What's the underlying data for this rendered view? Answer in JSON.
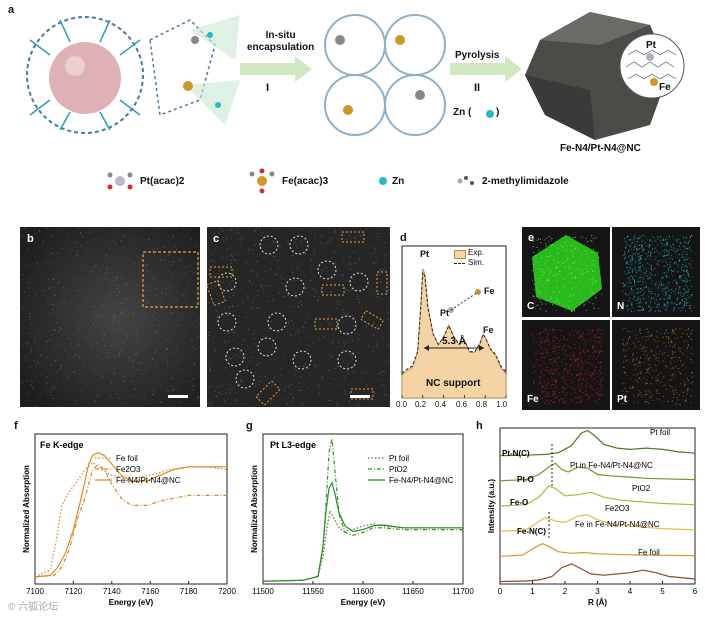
{
  "panel_a": {
    "letter": "a",
    "step1": {
      "label": "In-situ\nencapsulation",
      "numeral": "I"
    },
    "step2": {
      "label": "Pyrolysis",
      "numeral": "II",
      "product": "Zn ("
    },
    "product_label": "Fe-N4/Pt-N4@NC",
    "pt_atom": "Pt",
    "fe_atom": "Fe",
    "legend": [
      {
        "label": "Pt(acac)2"
      },
      {
        "label": "Fe(acac)3"
      },
      {
        "label": "Zn"
      },
      {
        "label": "2-methylimidazole"
      }
    ]
  },
  "panel_b": {
    "letter": "b"
  },
  "panel_c": {
    "letter": "c"
  },
  "panel_d": {
    "letter": "d",
    "pt_label": "Pt",
    "fe_label": "Fe",
    "pt2_label": "Pt",
    "fe2_label": "Fe",
    "distance": "5.3 Å",
    "support": "NC support",
    "legend": [
      "Exp.",
      "Sim."
    ],
    "ticks": [
      "0.0",
      "0.2",
      "0.4",
      "0.6",
      "0.8",
      "1.0"
    ]
  },
  "panel_e": {
    "letter": "e",
    "maps": [
      {
        "label": "C",
        "color": "#2ecc1f"
      },
      {
        "label": "N",
        "color": "#2ab5c8"
      },
      {
        "label": "Fe",
        "color": "#c0202a"
      },
      {
        "label": "Pt",
        "color": "#c47a22"
      }
    ]
  },
  "chart_data": [
    {
      "type": "line",
      "panel": "f",
      "title": "Fe K-edge",
      "xlabel": "Energy (eV)",
      "ylabel": "Normalized Absorption",
      "xlim": [
        7100,
        7200
      ],
      "xticks": [
        7100,
        7120,
        7140,
        7160,
        7180,
        7200
      ],
      "series": [
        {
          "name": "Fe foil",
          "color": "#c8893c",
          "x": [
            7100,
            7108,
            7111,
            7114,
            7118,
            7122,
            7126,
            7130,
            7135,
            7140,
            7150,
            7160,
            7170,
            7180,
            7190,
            7200
          ],
          "y": [
            0.05,
            0.1,
            0.3,
            0.55,
            0.65,
            0.72,
            0.8,
            0.85,
            0.8,
            0.76,
            0.74,
            0.76,
            0.8,
            0.82,
            0.82,
            0.8
          ]
        },
        {
          "name": "Fe2O3",
          "color": "#d08a30",
          "x": [
            7100,
            7110,
            7114,
            7118,
            7122,
            7126,
            7130,
            7133,
            7136,
            7140,
            7145,
            7150,
            7158,
            7165,
            7172,
            7180,
            7190,
            7200
          ],
          "y": [
            0.05,
            0.06,
            0.12,
            0.25,
            0.45,
            0.6,
            0.8,
            0.84,
            0.8,
            0.7,
            0.6,
            0.55,
            0.55,
            0.58,
            0.6,
            0.62,
            0.62,
            0.62
          ]
        },
        {
          "name": "Fe-N4/Pt-N4@NC",
          "color": "#e08a2a",
          "x": [
            7100,
            7108,
            7112,
            7116,
            7120,
            7124,
            7128,
            7130,
            7133,
            7136,
            7140,
            7145,
            7150,
            7158,
            7165,
            7172,
            7180,
            7190,
            7200
          ],
          "y": [
            0.05,
            0.06,
            0.12,
            0.22,
            0.38,
            0.6,
            0.84,
            0.9,
            0.92,
            0.9,
            0.84,
            0.76,
            0.72,
            0.72,
            0.76,
            0.8,
            0.82,
            0.82,
            0.82
          ]
        }
      ]
    },
    {
      "type": "line",
      "panel": "g",
      "title": "Pt L3-edge",
      "xlabel": "Energy (eV)",
      "ylabel": "Normalized Absorption",
      "xlim": [
        11500,
        11700
      ],
      "xticks": [
        11500,
        11550,
        11600,
        11650,
        11700
      ],
      "series": [
        {
          "name": "Pt foil",
          "color": "#4d7a2a",
          "x": [
            11500,
            11540,
            11555,
            11560,
            11564,
            11567,
            11570,
            11575,
            11580,
            11590,
            11600,
            11610,
            11620,
            11640,
            11660,
            11680,
            11700
          ],
          "y": [
            0.03,
            0.04,
            0.08,
            0.3,
            0.6,
            0.78,
            0.72,
            0.62,
            0.56,
            0.58,
            0.62,
            0.64,
            0.62,
            0.6,
            0.6,
            0.6,
            0.6
          ]
        },
        {
          "name": "PtO2",
          "color": "#3f8a2c",
          "x": [
            11500,
            11540,
            11555,
            11560,
            11563,
            11566,
            11569,
            11572,
            11576,
            11582,
            11590,
            11600,
            11610,
            11620,
            11640,
            11660,
            11680,
            11700
          ],
          "y": [
            0.03,
            0.04,
            0.08,
            0.4,
            0.85,
            1.4,
            1.55,
            1.2,
            0.75,
            0.55,
            0.52,
            0.55,
            0.6,
            0.6,
            0.58,
            0.58,
            0.58,
            0.58
          ]
        },
        {
          "name": "Fe-N4/Pt-N4@NC",
          "color": "#2e8a2a",
          "x": [
            11500,
            11540,
            11555,
            11560,
            11563,
            11566,
            11569,
            11572,
            11576,
            11582,
            11590,
            11600,
            11610,
            11620,
            11640,
            11660,
            11680,
            11700
          ],
          "y": [
            0.03,
            0.04,
            0.08,
            0.4,
            0.78,
            1.02,
            1.08,
            0.96,
            0.76,
            0.62,
            0.56,
            0.58,
            0.62,
            0.63,
            0.6,
            0.6,
            0.6,
            0.6
          ]
        }
      ]
    },
    {
      "type": "line",
      "panel": "h",
      "xlabel": "R (Å)",
      "ylabel": "Intensity (a.u.)",
      "xlim": [
        0,
        6
      ],
      "xticks": [
        0,
        1,
        2,
        3,
        4,
        5,
        6
      ],
      "series": [
        {
          "name": "Pt foil",
          "color": "#4e7a22",
          "offset": 5.0,
          "x": [
            0,
            0.8,
            1.4,
            1.8,
            2.2,
            2.5,
            2.7,
            2.9,
            3.2,
            3.6,
            4.0,
            4.5,
            5.0,
            5.5,
            6.0
          ],
          "y": [
            0,
            0.02,
            0.05,
            0.12,
            0.4,
            0.9,
            1.0,
            0.8,
            0.45,
            0.3,
            0.25,
            0.3,
            0.25,
            0.15,
            0.1
          ]
        },
        {
          "name": "Pt in Fe-N4/Pt-N4@NC",
          "color": "#6b9a2a",
          "offset": 4.0,
          "x": [
            0,
            0.8,
            1.2,
            1.5,
            1.7,
            1.9,
            2.1,
            2.4,
            2.7,
            3.0,
            3.4,
            4.0,
            4.5,
            5.0,
            6.0
          ],
          "y": [
            0,
            0.05,
            0.25,
            0.55,
            0.7,
            0.45,
            0.35,
            0.55,
            0.5,
            0.25,
            0.2,
            0.15,
            0.1,
            0.08,
            0.05
          ]
        },
        {
          "name": "PtO2",
          "color": "#9fbf3a",
          "offset": 3.0,
          "x": [
            0,
            0.8,
            1.2,
            1.5,
            1.7,
            2.0,
            2.4,
            2.8,
            3.2,
            3.6,
            4.0,
            4.5,
            5.0,
            6.0
          ],
          "y": [
            0,
            0.05,
            0.35,
            0.8,
            0.7,
            0.4,
            0.45,
            0.55,
            0.35,
            0.25,
            0.2,
            0.15,
            0.1,
            0.05
          ]
        },
        {
          "name": "Fe2O3",
          "color": "#e0c04a",
          "offset": 2.0,
          "x": [
            0,
            0.8,
            1.1,
            1.4,
            1.7,
            2.0,
            2.4,
            2.7,
            3.0,
            3.4,
            4.0,
            4.5,
            5.0,
            6.0
          ],
          "y": [
            0,
            0.05,
            0.3,
            0.55,
            0.4,
            0.35,
            0.6,
            0.65,
            0.45,
            0.3,
            0.2,
            0.15,
            0.1,
            0.05
          ]
        },
        {
          "name": "Fe in Fe-N4/Pt-N4@NC",
          "color": "#d59a2a",
          "offset": 1.0,
          "x": [
            0,
            0.7,
            1.0,
            1.3,
            1.5,
            1.8,
            2.2,
            2.6,
            3.0,
            3.5,
            4.0,
            4.5,
            5.0,
            6.0
          ],
          "y": [
            0,
            0.05,
            0.3,
            0.5,
            0.4,
            0.18,
            0.12,
            0.15,
            0.1,
            0.08,
            0.06,
            0.05,
            0.04,
            0.03
          ]
        },
        {
          "name": "Fe foil",
          "color": "#8a4a28",
          "offset": 0.0,
          "x": [
            0,
            0.8,
            1.2,
            1.6,
            1.9,
            2.2,
            2.5,
            2.8,
            3.2,
            3.6,
            4.0,
            4.4,
            4.8,
            5.2,
            6.0
          ],
          "y": [
            0,
            0.02,
            0.06,
            0.2,
            0.55,
            0.7,
            0.5,
            0.3,
            0.25,
            0.3,
            0.35,
            0.45,
            0.35,
            0.2,
            0.1
          ]
        }
      ],
      "annotations": [
        "Pt-N(C)",
        "Pt-O",
        "Fe-O",
        "Fe-N(C)"
      ]
    }
  ],
  "watermark": "© 六狐论坛"
}
